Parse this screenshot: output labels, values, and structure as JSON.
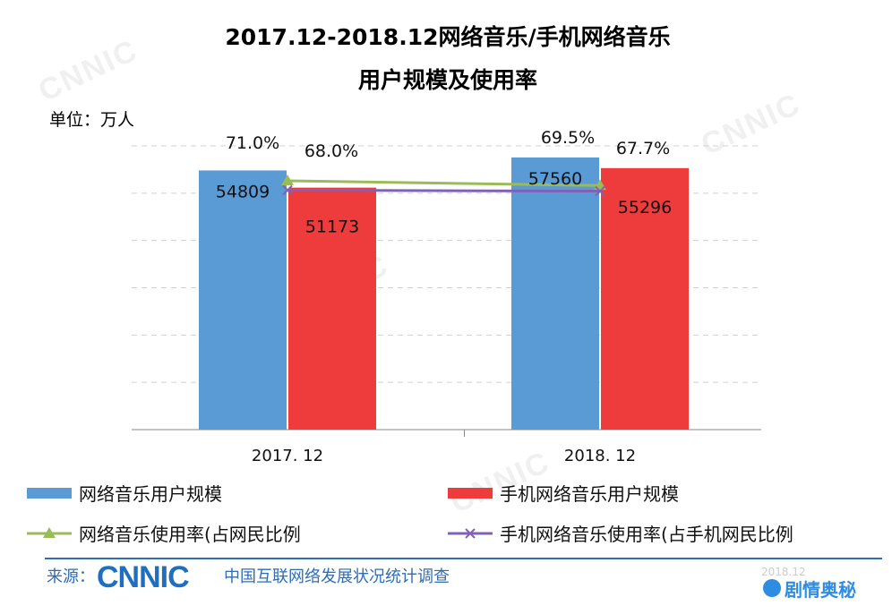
{
  "chart_data": {
    "type": "bar",
    "title_line1": "2017.12-2018.12网络音乐/手机网络音乐",
    "title_line2": "用户规模及使用率",
    "unit_label": "单位：万人",
    "categories": [
      "2017. 12",
      "2018. 12"
    ],
    "ylim": [
      0,
      60000
    ],
    "grid": true,
    "series": [
      {
        "name": "网络音乐用户规模",
        "kind": "bar",
        "color": "#5b9bd5",
        "values": [
          54809,
          57560
        ]
      },
      {
        "name": "手机网络音乐用户规模",
        "kind": "bar",
        "color": "#ee3b3b",
        "values": [
          51173,
          55296
        ]
      },
      {
        "name": "网络音乐使用率(占网民比例",
        "kind": "line",
        "marker": "triangle",
        "color": "#9bbb59",
        "values": [
          71.0,
          69.5
        ],
        "labels": [
          "71.0%",
          "69.5%"
        ]
      },
      {
        "name": "手机网络音乐使用率(占手机网民比例",
        "kind": "line",
        "marker": "x",
        "color": "#7f62b8",
        "values": [
          68.0,
          67.7
        ],
        "labels": [
          "68.0%",
          "67.7%"
        ]
      }
    ],
    "legend_placement": "bottom"
  },
  "footer": {
    "source_label": "来源：",
    "logo_text": "CNNIC",
    "org_name": "中国互联网络发展状况统计调查",
    "date": "2018.12",
    "badge": "剧情奥秘"
  }
}
